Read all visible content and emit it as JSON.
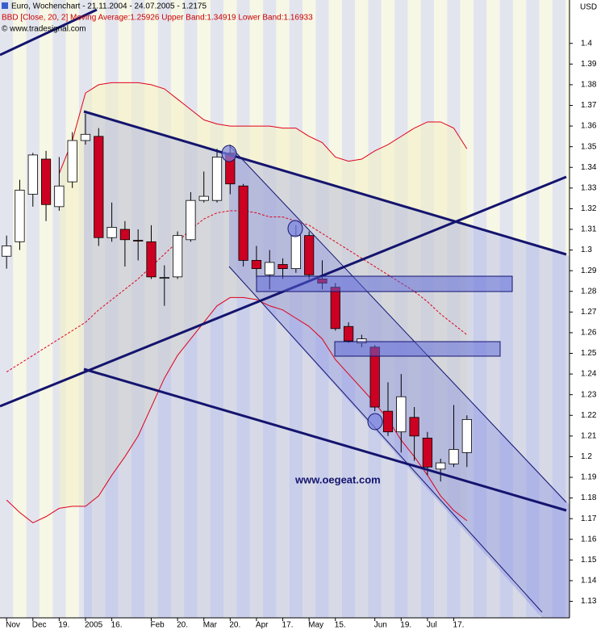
{
  "chart_data": {
    "type": "candlestick",
    "title": "Euro, Wochenchart - 21.11.2004 - 24.07.2005 - 1.2175",
    "subtitle": "BBD [Close, 20, 2] Moving Average:1.25926 Upper Band:1.34919 Lower Band:1.16933",
    "source": "© www.tradesignal.com",
    "y_label": "USD",
    "watermark": "www.oegeat.com",
    "up_color": "#ffffff",
    "down_color": "#cc0022",
    "xlim": [
      -0.5,
      42.8
    ],
    "ylim": [
      1.122,
      1.421
    ],
    "xticks": [
      {
        "value": 0,
        "label": "Nov"
      },
      {
        "value": 2,
        "label": "Dec"
      },
      {
        "value": 4,
        "label": "19."
      },
      {
        "value": 6,
        "label": "2005"
      },
      {
        "value": 8,
        "label": "16."
      },
      {
        "value": 11,
        "label": "Feb"
      },
      {
        "value": 13,
        "label": "20."
      },
      {
        "value": 15,
        "label": "Mar"
      },
      {
        "value": 17,
        "label": "20."
      },
      {
        "value": 19,
        "label": "Apr"
      },
      {
        "value": 21,
        "label": "17."
      },
      {
        "value": 23,
        "label": "May"
      },
      {
        "value": 25,
        "label": "15."
      },
      {
        "value": 28,
        "label": "Jun"
      },
      {
        "value": 30,
        "label": "19."
      },
      {
        "value": 32,
        "label": "Jul"
      },
      {
        "value": 34,
        "label": "17."
      }
    ],
    "yticks": [
      1.13,
      1.14,
      1.15,
      1.16,
      1.17,
      1.18,
      1.19,
      1.2,
      1.21,
      1.22,
      1.23,
      1.24,
      1.25,
      1.26,
      1.27,
      1.28,
      1.29,
      1.3,
      1.31,
      1.32,
      1.33,
      1.34,
      1.35,
      1.36,
      1.37,
      1.38,
      1.39,
      1.4
    ],
    "x": [
      0,
      1,
      2,
      3,
      4,
      5,
      6,
      7,
      8,
      9,
      10,
      11,
      12,
      13,
      14,
      15,
      16,
      17,
      18,
      19,
      20,
      21,
      22,
      23,
      24,
      25,
      26,
      27,
      28,
      29,
      30,
      31,
      32,
      33,
      34,
      35
    ],
    "open": [
      1.297,
      1.304,
      1.327,
      1.344,
      1.321,
      1.333,
      1.353,
      1.355,
      1.306,
      1.31,
      1.3047,
      1.304,
      1.2863,
      1.287,
      1.305,
      1.324,
      1.324,
      1.347,
      1.331,
      1.295,
      1.288,
      1.293,
      1.291,
      1.307,
      1.286,
      1.282,
      1.263,
      1.255,
      1.253,
      1.222,
      1.212,
      1.219,
      1.209,
      1.194,
      1.1965,
      1.202
    ],
    "high": [
      1.307,
      1.334,
      1.347,
      1.348,
      1.345,
      1.357,
      1.366,
      1.359,
      1.323,
      1.314,
      1.31,
      1.312,
      1.2926,
      1.309,
      1.328,
      1.338,
      1.349,
      1.351,
      1.332,
      1.302,
      1.3,
      1.296,
      1.312,
      1.309,
      1.295,
      1.284,
      1.265,
      1.259,
      1.254,
      1.236,
      1.24,
      1.224,
      1.212,
      1.199,
      1.225,
      1.22
    ],
    "low": [
      1.291,
      1.3,
      1.321,
      1.314,
      1.319,
      1.33,
      1.351,
      1.302,
      1.304,
      1.292,
      1.295,
      1.286,
      1.273,
      1.286,
      1.304,
      1.323,
      1.323,
      1.327,
      1.292,
      1.286,
      1.281,
      1.286,
      1.289,
      1.286,
      1.281,
      1.261,
      1.255,
      1.253,
      1.222,
      1.21,
      1.202,
      1.198,
      1.191,
      1.188,
      1.195,
      1.195
    ],
    "close": [
      1.302,
      1.329,
      1.346,
      1.322,
      1.331,
      1.353,
      1.356,
      1.306,
      1.311,
      1.305,
      1.3045,
      1.287,
      1.2867,
      1.307,
      1.324,
      1.326,
      1.345,
      1.332,
      1.295,
      1.291,
      1.294,
      1.291,
      1.307,
      1.288,
      1.284,
      1.262,
      1.256,
      1.257,
      1.224,
      1.212,
      1.229,
      1.21,
      1.195,
      1.197,
      1.2035,
      1.218
    ],
    "series": [
      {
        "name": "Upper Band",
        "color": "#e0001a",
        "dash": false,
        "values": [
          null,
          null,
          null,
          null,
          1.337,
          1.353,
          1.376,
          1.38,
          1.381,
          1.381,
          1.381,
          1.38,
          1.378,
          1.373,
          1.368,
          1.363,
          1.361,
          1.36,
          1.36,
          1.36,
          1.36,
          1.359,
          1.359,
          1.355,
          1.352,
          1.345,
          1.343,
          1.344,
          1.348,
          1.351,
          1.355,
          1.359,
          1.362,
          1.362,
          1.359,
          1.349
        ]
      },
      {
        "name": "Moving Average",
        "color": "#e0001a",
        "dash": true,
        "values": [
          1.241,
          1.245,
          1.249,
          1.253,
          1.257,
          1.261,
          1.265,
          1.271,
          1.276,
          1.281,
          1.286,
          1.292,
          1.298,
          1.304,
          1.31,
          1.315,
          1.318,
          1.319,
          1.319,
          1.318,
          1.316,
          1.316,
          1.314,
          1.312,
          1.308,
          1.304,
          1.3,
          1.296,
          1.292,
          1.288,
          1.284,
          1.28,
          1.275,
          1.269,
          1.264,
          1.259
        ]
      },
      {
        "name": "Lower Band",
        "color": "#e0001a",
        "dash": false,
        "values": [
          1.179,
          1.173,
          1.168,
          1.171,
          1.175,
          1.176,
          1.176,
          1.181,
          1.191,
          1.2,
          1.21,
          1.224,
          1.238,
          1.249,
          1.257,
          1.265,
          1.273,
          1.277,
          1.277,
          1.276,
          1.273,
          1.271,
          1.267,
          1.263,
          1.257,
          1.247,
          1.24,
          1.233,
          1.226,
          1.218,
          1.208,
          1.2,
          1.191,
          1.181,
          1.174,
          1.169
        ]
      }
    ]
  }
}
